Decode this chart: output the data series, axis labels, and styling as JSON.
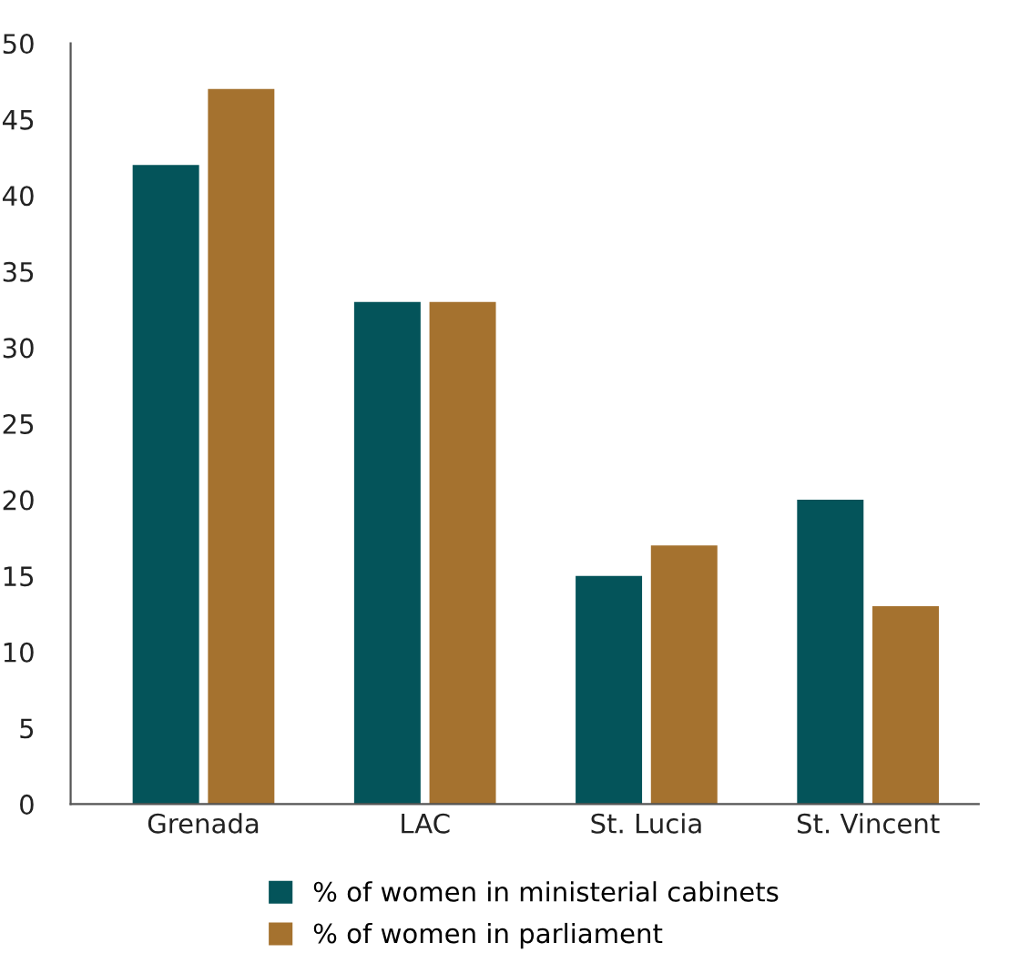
{
  "chart_data": {
    "type": "bar",
    "categories": [
      "Grenada",
      "LAC",
      "St. Lucia",
      "St. Vincent"
    ],
    "series": [
      {
        "name": "% of women in ministerial cabinets",
        "color": "#04545a",
        "values": [
          42,
          33,
          15,
          20
        ]
      },
      {
        "name": "% of women in parliament",
        "color": "#a5722f",
        "values": [
          47,
          33,
          17,
          13
        ]
      }
    ],
    "ylim": [
      0,
      50
    ],
    "yticks": [
      0,
      5,
      10,
      15,
      20,
      25,
      30,
      35,
      40,
      45,
      50
    ],
    "grid": false,
    "legend": "bottom"
  }
}
